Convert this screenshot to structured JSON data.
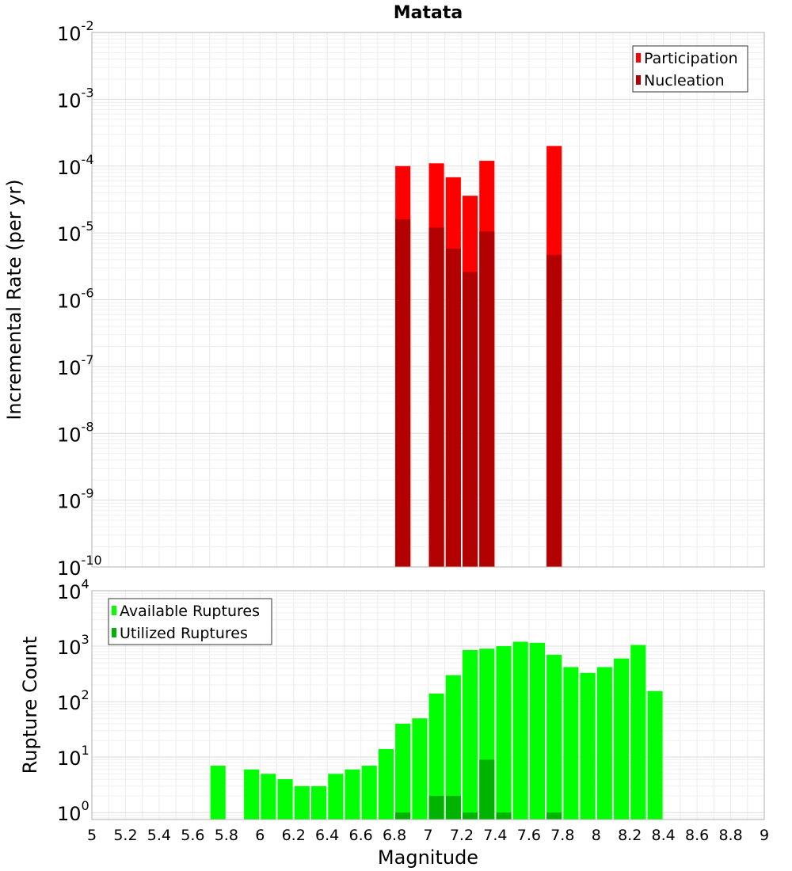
{
  "chart_data": [
    {
      "type": "bar",
      "title": "Matata",
      "xlabel": "",
      "ylabel": "Incremental Rate (per yr)",
      "yscale": "log",
      "ylim": [
        1e-10,
        0.01
      ],
      "xlim": [
        5,
        9
      ],
      "y_tick_labels": [
        {
          "base": "10",
          "exp": "-10"
        },
        {
          "base": "10",
          "exp": "-9"
        },
        {
          "base": "10",
          "exp": "-8"
        },
        {
          "base": "10",
          "exp": "-7"
        },
        {
          "base": "10",
          "exp": "-6"
        },
        {
          "base": "10",
          "exp": "-5"
        },
        {
          "base": "10",
          "exp": "-4"
        },
        {
          "base": "10",
          "exp": "-3"
        },
        {
          "base": "10",
          "exp": "-2"
        }
      ],
      "grid": true,
      "legend_placement": "top-right",
      "series": [
        {
          "name": "Participation",
          "color": "#ff0000",
          "x": [
            6.85,
            7.05,
            7.15,
            7.25,
            7.35,
            7.75
          ],
          "values": [
            0.0001,
            0.00011,
            6.8e-05,
            3.6e-05,
            0.00012,
            0.0002
          ]
        },
        {
          "name": "Nucleation",
          "color": "#b30000",
          "x": [
            6.85,
            7.05,
            7.15,
            7.25,
            7.35,
            7.75
          ],
          "values": [
            1.6e-05,
            1.2e-05,
            5.8e-06,
            2.6e-06,
            1.05e-05,
            4.7e-06
          ]
        }
      ]
    },
    {
      "type": "bar",
      "title": "",
      "xlabel": "Magnitude",
      "ylabel": "Rupture Count",
      "yscale": "log",
      "ylim": [
        0.75,
        10000
      ],
      "xlim": [
        5,
        9
      ],
      "y_tick_labels": [
        {
          "base": "10",
          "exp": "0"
        },
        {
          "base": "10",
          "exp": "1"
        },
        {
          "base": "10",
          "exp": "2"
        },
        {
          "base": "10",
          "exp": "3"
        },
        {
          "base": "10",
          "exp": "4"
        }
      ],
      "x_tick_labels": [
        "5",
        "5.2",
        "5.4",
        "5.6",
        "5.8",
        "6",
        "6.2",
        "6.4",
        "6.6",
        "6.8",
        "7",
        "7.2",
        "7.4",
        "7.6",
        "7.8",
        "8",
        "8.2",
        "8.4",
        "8.6",
        "8.8",
        "9"
      ],
      "grid": true,
      "legend_placement": "top-left",
      "series": [
        {
          "name": "Available Ruptures",
          "color": "#00ff00",
          "x": [
            5.75,
            5.95,
            6.05,
            6.15,
            6.25,
            6.35,
            6.45,
            6.55,
            6.65,
            6.75,
            6.85,
            6.95,
            7.05,
            7.15,
            7.25,
            7.35,
            7.45,
            7.55,
            7.65,
            7.75,
            7.85,
            7.95,
            8.05,
            8.15,
            8.25,
            8.35
          ],
          "values": [
            7,
            6,
            5,
            4,
            3,
            3,
            5,
            6,
            7,
            14,
            40,
            50,
            140,
            300,
            850,
            900,
            1000,
            1200,
            1150,
            700,
            420,
            330,
            420,
            600,
            1050,
            155
          ]
        },
        {
          "name": "Utilized Ruptures",
          "color": "#00b300",
          "x": [
            6.85,
            7.05,
            7.15,
            7.25,
            7.35,
            7.45,
            7.75
          ],
          "values": [
            1,
            2,
            2,
            1,
            9,
            1,
            1
          ]
        }
      ]
    }
  ]
}
